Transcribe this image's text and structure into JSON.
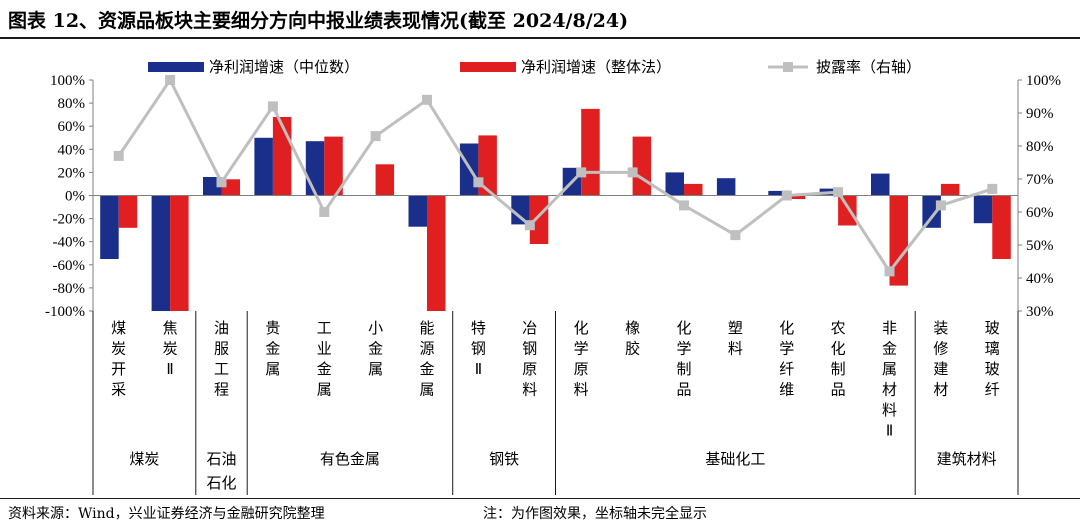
{
  "title": "图表 12、资源品板块主要细分方向中报业绩表现情况(截至 2024/8/24)",
  "source": "资料来源：Wind，兴业证券经济与金融研究院整理",
  "note": "注：为作图效果，坐标轴未完全显示",
  "colors": {
    "median": "#1a2f8a",
    "overall": "#e02020",
    "disclosure": "#bfbfbf"
  },
  "chart_data": {
    "type": "bar",
    "categories": [
      "煤炭开采",
      "焦炭Ⅱ",
      "油服工程",
      "贵金属",
      "工业金属",
      "小金属",
      "能源金属",
      "特钢Ⅱ",
      "冶钢原料",
      "化学原料",
      "橡胶",
      "化学制品",
      "塑料",
      "化学纤维",
      "农化制品",
      "非金属材料Ⅱ",
      "装修建材",
      "玻璃玻纤"
    ],
    "groups": [
      {
        "name": "煤炭",
        "start": 0,
        "end": 1
      },
      {
        "name": "石油石化",
        "start": 2,
        "end": 2
      },
      {
        "name": "有色金属",
        "start": 3,
        "end": 6
      },
      {
        "name": "钢铁",
        "start": 7,
        "end": 8
      },
      {
        "name": "基础化工",
        "start": 9,
        "end": 15
      },
      {
        "name": "建筑材料",
        "start": 16,
        "end": 17
      }
    ],
    "series": [
      {
        "name": "净利润增速（中位数）",
        "axis": "left",
        "kind": "bar",
        "values": [
          -55,
          -100,
          16,
          50,
          47,
          0,
          -27,
          45,
          -25,
          24,
          0,
          20,
          15,
          4,
          6,
          19,
          -28,
          -24
        ]
      },
      {
        "name": "净利润增速（整体法）",
        "axis": "left",
        "kind": "bar",
        "values": [
          -28,
          -100,
          14,
          68,
          51,
          27,
          -100,
          52,
          -42,
          75,
          51,
          10,
          0,
          -3,
          -26,
          -78,
          10,
          -55
        ]
      },
      {
        "name": "披露率（右轴）",
        "axis": "right",
        "kind": "line",
        "values": [
          77,
          100,
          69,
          92,
          60,
          83,
          94,
          69,
          56,
          72,
          72,
          62,
          53,
          65,
          66,
          42,
          62,
          67
        ]
      }
    ],
    "y_left": {
      "min": -100,
      "max": 100,
      "step": 20,
      "tick_labels": [
        "-100%",
        "-80%",
        "-60%",
        "-40%",
        "-20%",
        "0%",
        "20%",
        "40%",
        "60%",
        "80%",
        "100%"
      ]
    },
    "y_right": {
      "min": 30,
      "max": 100,
      "step": 10,
      "tick_labels": [
        "30%",
        "40%",
        "50%",
        "60%",
        "70%",
        "80%",
        "90%",
        "100%"
      ]
    },
    "legend_position": "top"
  }
}
